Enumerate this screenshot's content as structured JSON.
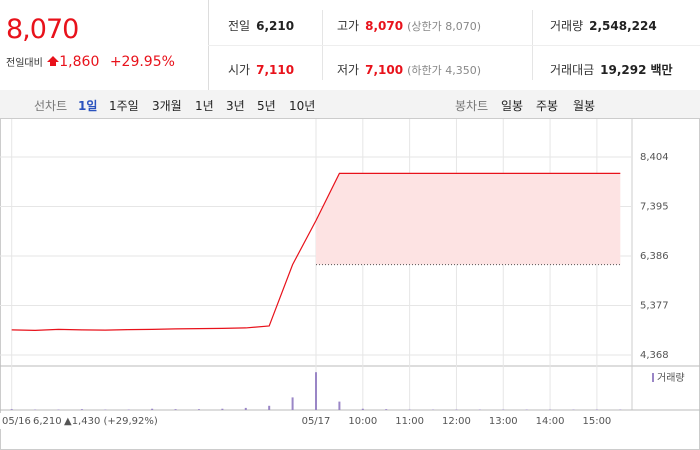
{
  "header": {
    "price": "8,070",
    "change_label": "전일대비",
    "change": "1,860",
    "change_pct": "+29.95%"
  },
  "stats": [
    {
      "label": "전일",
      "value": "6,210"
    },
    {
      "label": "고가",
      "value": "8,070",
      "note": "(상한가 8,070)"
    },
    {
      "label": "거래량",
      "value": "2,548,224"
    },
    {
      "label": "시가",
      "value": "7,110"
    },
    {
      "label": "저가",
      "value": "7,100",
      "note": "(하한가 4,350)"
    },
    {
      "label": "거래대금",
      "value": "19,292",
      "unit": "백만"
    }
  ],
  "tabs": {
    "line_label": "선차트",
    "line": [
      "1일",
      "1주일",
      "3개월",
      "1년",
      "3년",
      "5년",
      "10년"
    ],
    "candle_label": "봉차트",
    "candle": [
      "일봉",
      "주봉",
      "월봉"
    ]
  },
  "chart_data": {
    "type": "line",
    "categories": [
      "05/16",
      null,
      null,
      null,
      null,
      null,
      null,
      null,
      null,
      null,
      null,
      null,
      null,
      "05/17",
      null,
      "10:00",
      null,
      "11:00",
      null,
      "12:00",
      null,
      "13:00",
      null,
      "14:00",
      null,
      "15:00",
      null
    ],
    "series": [
      {
        "color": "#e8121b",
        "values": [
          4880,
          4870,
          4890,
          4880,
          4875,
          4885,
          4890,
          4900,
          4905,
          4910,
          4920,
          4960,
          6210,
          7110,
          8070,
          8070,
          8070,
          8070,
          8070,
          8070,
          8070,
          8070,
          8070,
          8070,
          8070,
          8070,
          8070
        ]
      },
      {
        "name": "거래량",
        "type": "bar",
        "axis": "y2",
        "color": "#9a86c6",
        "values": [
          2,
          1,
          1,
          2,
          1,
          1,
          3,
          2,
          2,
          3,
          5,
          10,
          30,
          90,
          20,
          3,
          2,
          1,
          1,
          1,
          1,
          1,
          1,
          1,
          1,
          1,
          1
        ]
      }
    ],
    "baseline": 6210,
    "ylim": [
      4164,
      9056
    ],
    "yticks": [
      {
        "value": 8404,
        "label": "8,404"
      },
      {
        "value": 7395,
        "label": "7,395"
      },
      {
        "value": 6386,
        "label": "6,386"
      },
      {
        "value": 5377,
        "label": "5,377"
      },
      {
        "value": 4368,
        "label": "4,368"
      }
    ],
    "y2lim": [
      0,
      100
    ],
    "grid": true,
    "annotation": {
      "date": "05/16",
      "price": "6,210",
      "change": "▲1,430 (+29,92%)"
    }
  }
}
